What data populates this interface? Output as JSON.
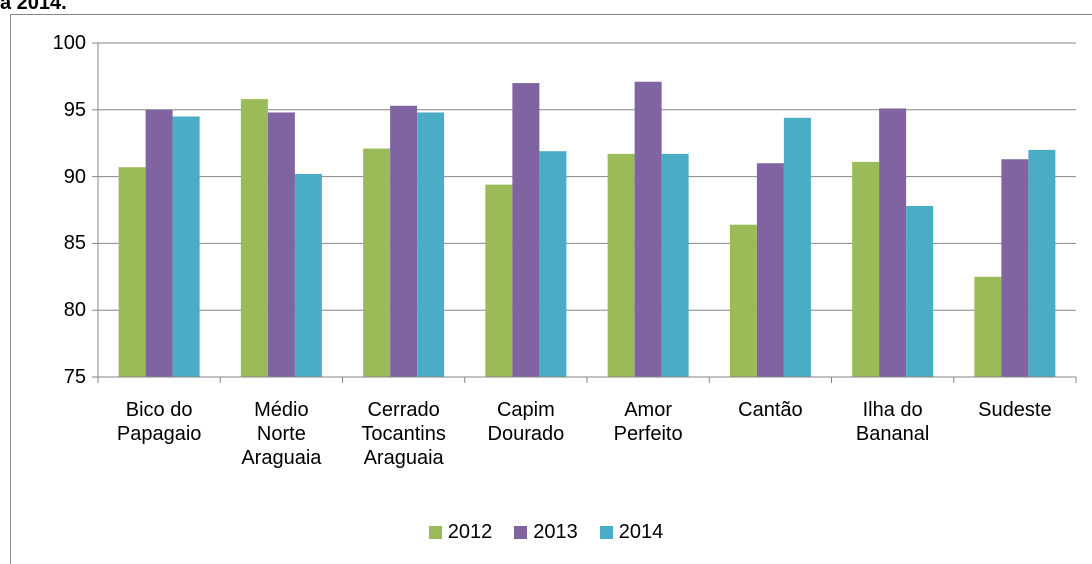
{
  "chart_data": {
    "type": "bar",
    "title": "a 2014.",
    "categories": [
      "Bico do Papagaio",
      "Médio Norte Araguaia",
      "Cerrado Tocantins Araguaia",
      "Capim Dourado",
      "Amor Perfeito",
      "Cantão",
      "Ilha do Bananal",
      "Sudeste"
    ],
    "series": [
      {
        "name": "2012",
        "color": "#9bbb59",
        "values": [
          90.7,
          95.8,
          92.1,
          89.4,
          91.7,
          86.4,
          91.1,
          82.5
        ]
      },
      {
        "name": "2013",
        "color": "#8064a2",
        "values": [
          95.0,
          94.8,
          95.3,
          97.0,
          97.1,
          91.0,
          95.1,
          91.3
        ]
      },
      {
        "name": "2014",
        "color": "#4bacc6",
        "values": [
          94.5,
          90.2,
          94.8,
          91.9,
          91.7,
          94.4,
          87.8,
          92.0
        ]
      }
    ],
    "ylim": [
      75,
      100
    ],
    "yticks": [
      75,
      80,
      85,
      90,
      95,
      100
    ],
    "grid": true,
    "legend": "bottom"
  }
}
